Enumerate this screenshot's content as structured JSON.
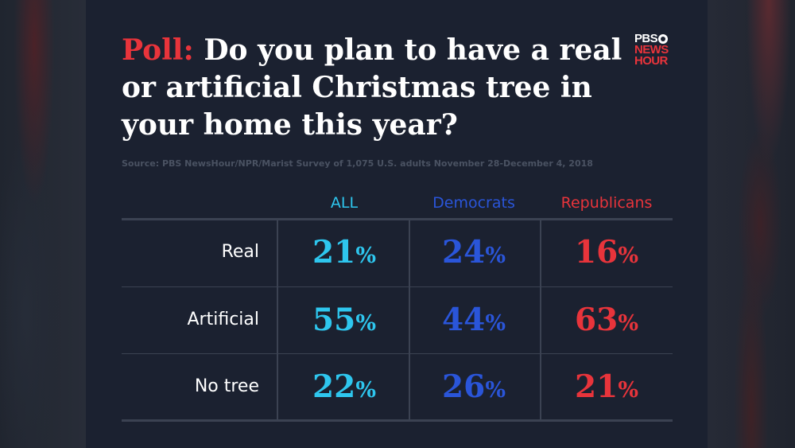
{
  "title_prefix": "Poll:",
  "title_text": "Do you plan to have a real or artificial Christmas tree in your home this year?",
  "logo": {
    "line1": "PBS",
    "line2": "NEWS",
    "line3": "HOUR"
  },
  "source": "Source: PBS NewsHour/NPR/Marist  Survey of 1,075 U.S. adults November 28-December 4, 2018",
  "colors": {
    "all": "#2ec6ee",
    "democrats": "#2a55d9",
    "republicans": "#e8343b",
    "poll": "#e8343b"
  },
  "chart_data": {
    "type": "table",
    "title": "Poll: Do you plan to have a real or artificial Christmas tree in your home this year?",
    "columns": [
      "ALL",
      "Democrats",
      "Republicans"
    ],
    "rows": [
      {
        "label": "Real",
        "values": [
          "21%",
          "24%",
          "16%"
        ]
      },
      {
        "label": "Artificial",
        "values": [
          "55%",
          "44%",
          "63%"
        ]
      },
      {
        "label": "No tree",
        "values": [
          "22%",
          "26%",
          "21%"
        ]
      }
    ]
  }
}
